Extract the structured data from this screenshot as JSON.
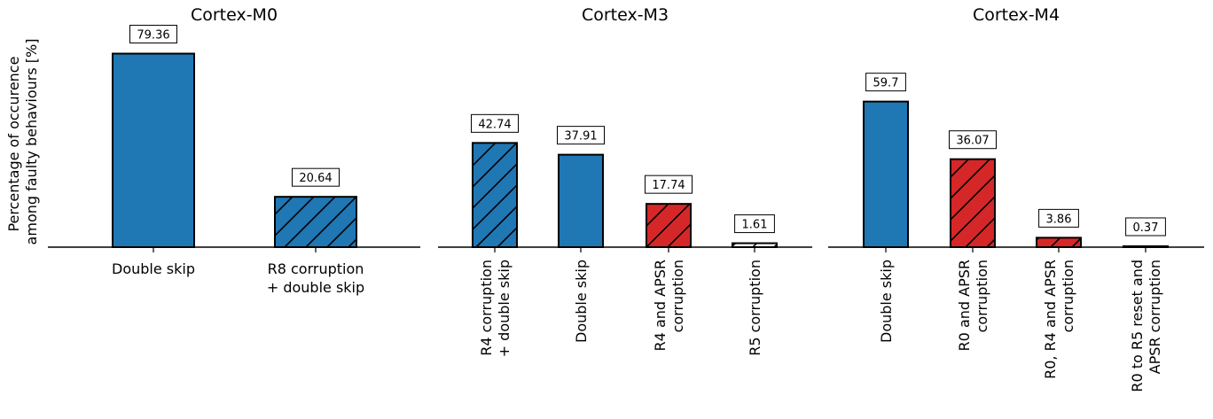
{
  "ylabel_lines": [
    "Percentage of occurence",
    "among faulty behaviours [%]"
  ],
  "colors": {
    "blue": "#1f77b4",
    "red": "#d62728",
    "white": "#ffffff"
  },
  "chart_data": [
    {
      "type": "bar",
      "title": "Cortex-M0",
      "categories": [
        "Double skip",
        "R8 corruption\n+ double skip"
      ],
      "values": [
        79.36,
        20.64
      ],
      "value_labels": [
        "79.36",
        "20.64"
      ],
      "fills": [
        "blue",
        "blue"
      ],
      "hatched": [
        false,
        true
      ],
      "rotate_ticks": false,
      "ylim": [
        0,
        85
      ]
    },
    {
      "type": "bar",
      "title": "Cortex-M3",
      "categories": [
        "R4 corruption\n+ double skip",
        "Double skip",
        "R4 and APSR\ncorruption",
        "R5 corruption"
      ],
      "values": [
        42.74,
        37.91,
        17.74,
        1.61
      ],
      "value_labels": [
        "42.74",
        "37.91",
        "17.74",
        "1.61"
      ],
      "fills": [
        "blue",
        "blue",
        "red",
        "white"
      ],
      "hatched": [
        true,
        false,
        true,
        true
      ],
      "rotate_ticks": true,
      "ylim": [
        0,
        85
      ]
    },
    {
      "type": "bar",
      "title": "Cortex-M4",
      "categories": [
        "Double skip",
        "R0 and APSR\ncorruption",
        "R0, R4 and APSR\ncorruption",
        "R0 to R5 reset and\nAPSR corruption"
      ],
      "values": [
        59.7,
        36.07,
        3.86,
        0.37
      ],
      "value_labels": [
        "59.7",
        "36.07",
        "3.86",
        "0.37"
      ],
      "fills": [
        "blue",
        "red",
        "red",
        "white"
      ],
      "hatched": [
        false,
        true,
        true,
        false
      ],
      "rotate_ticks": true,
      "ylim": [
        0,
        85
      ]
    }
  ]
}
